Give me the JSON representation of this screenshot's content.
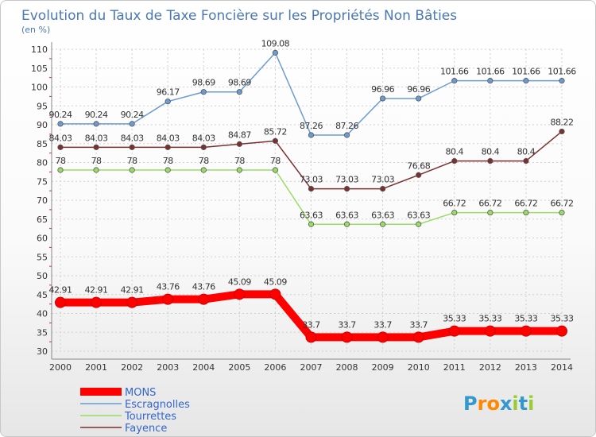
{
  "chart_data": {
    "type": "line",
    "title": "Evolution du Taux de Taxe Foncière sur les Propriétés Non Bâties",
    "ylabel": "(en %)",
    "xlabel": "",
    "ylim": [
      30,
      110
    ],
    "yticks": [
      30,
      35,
      40,
      45,
      50,
      55,
      60,
      65,
      70,
      75,
      80,
      85,
      90,
      95,
      100,
      105,
      110
    ],
    "x": [
      "2000",
      "2001",
      "2002",
      "2003",
      "2004",
      "2005",
      "2006",
      "2007",
      "2008",
      "2009",
      "2010",
      "2011",
      "2012",
      "2013",
      "2014"
    ],
    "grid": true,
    "series": [
      {
        "name": "MONS",
        "color": "#ff0000",
        "values": [
          42.91,
          42.91,
          42.91,
          43.76,
          43.76,
          45.09,
          45.09,
          33.7,
          33.7,
          33.7,
          33.7,
          35.33,
          35.33,
          35.33,
          35.33
        ],
        "labels": [
          "42.91",
          "42.91",
          "42.91",
          "43.76",
          "43.76",
          "45.09",
          "45.09",
          "33.7",
          "33.7",
          "33.7",
          "33.7",
          "35.33",
          "35.33",
          "35.33",
          "35.33"
        ]
      },
      {
        "name": "Escragnolles",
        "color": "#6b9bd1",
        "values": [
          90.24,
          90.24,
          90.24,
          96.17,
          98.69,
          98.69,
          109.08,
          87.26,
          87.26,
          96.96,
          96.96,
          101.66,
          101.66,
          101.66,
          101.66
        ],
        "labels": [
          "90.24",
          "90.24",
          "90.24",
          "96.17",
          "98.69",
          "98.69",
          "109.08",
          "87.26",
          "87.26",
          "96.96",
          "96.96",
          "101.66",
          "101.66",
          "101.66",
          "101.66"
        ]
      },
      {
        "name": "Tourrettes",
        "color": "#99dd66",
        "values": [
          78,
          78,
          78,
          78,
          78,
          78,
          78,
          63.63,
          63.63,
          63.63,
          63.63,
          66.72,
          66.72,
          66.72,
          66.72
        ],
        "labels": [
          "78",
          "78",
          "78",
          "78",
          "78",
          "78",
          "78",
          "63.63",
          "63.63",
          "63.63",
          "63.63",
          "66.72",
          "66.72",
          "66.72",
          "66.72"
        ]
      },
      {
        "name": "Fayence",
        "color": "#7a3030",
        "values": [
          84.03,
          84.03,
          84.03,
          84.03,
          84.03,
          84.87,
          85.72,
          73.03,
          73.03,
          73.03,
          76.68,
          80.4,
          80.4,
          80.4,
          88.22
        ],
        "labels": [
          "84.03",
          "84.03",
          "84.03",
          "84.03",
          "84.03",
          "84.87",
          "85.72",
          "73.03",
          "73.03",
          "73.03",
          "76.68",
          "80.4",
          "80.4",
          "80.4",
          "88.22"
        ]
      }
    ]
  },
  "legend": [
    "MONS",
    "Escragnolles",
    "Tourrettes",
    "Fayence"
  ],
  "logo": {
    "text": "Proxiti",
    "letters": [
      "P",
      "r",
      "o",
      "x",
      "i",
      "t",
      "i"
    ],
    "colors": [
      "#3399cc",
      "#ff8800",
      "#ff8800",
      "#3399cc",
      "#99cc33",
      "#3399cc",
      "#99cc33"
    ]
  }
}
